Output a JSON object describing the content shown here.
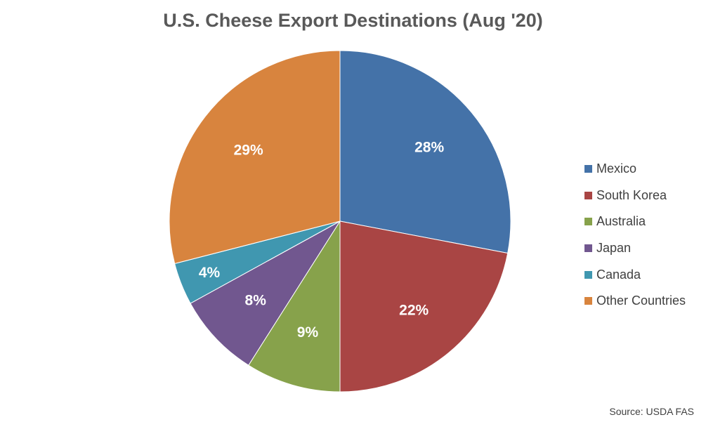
{
  "chart_data": {
    "type": "pie",
    "title": "U.S. Cheese Export Destinations (Aug '20)",
    "categories": [
      "Mexico",
      "South Korea",
      "Australia",
      "Japan",
      "Canada",
      "Other Countries"
    ],
    "values": [
      28,
      22,
      9,
      8,
      4,
      29
    ],
    "value_labels": [
      "28%",
      "22%",
      "9%",
      "8%",
      "4%",
      "29%"
    ],
    "colors": [
      "#4472a8",
      "#a94544",
      "#87a24b",
      "#71578f",
      "#4097b0",
      "#d8843e"
    ],
    "legend_position": "right",
    "start_angle": "top, clockwise"
  },
  "source": "Source: USDA FAS"
}
